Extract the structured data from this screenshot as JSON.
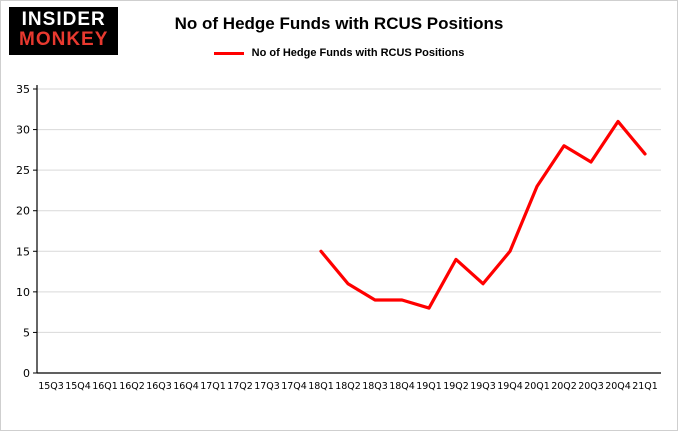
{
  "logo": {
    "line1": "INSIDER",
    "line2": "MONKEY",
    "background_color": "#000000",
    "line1_color": "#ffffff",
    "line2_color": "#e8392f"
  },
  "title": "No of Hedge Funds with RCUS Positions",
  "legend": {
    "label": "No of Hedge Funds with RCUS Positions",
    "color": "#ff0000"
  },
  "chart_data": {
    "type": "line",
    "title": "No of Hedge Funds with RCUS Positions",
    "categories": [
      "15Q3",
      "15Q4",
      "16Q1",
      "16Q2",
      "16Q3",
      "16Q4",
      "17Q1",
      "17Q2",
      "17Q3",
      "17Q4",
      "18Q1",
      "18Q2",
      "18Q3",
      "18Q4",
      "19Q1",
      "19Q2",
      "19Q3",
      "19Q4",
      "20Q1",
      "20Q2",
      "20Q3",
      "20Q4",
      "21Q1"
    ],
    "series": [
      {
        "name": "No of Hedge Funds with RCUS Positions",
        "color": "#ff0000",
        "values": [
          null,
          null,
          null,
          null,
          null,
          null,
          null,
          null,
          null,
          null,
          15,
          11,
          9,
          9,
          8,
          14,
          11,
          15,
          23,
          28,
          26,
          31,
          27
        ]
      }
    ],
    "ylim": [
      0,
      35
    ],
    "yticks": [
      0,
      5,
      10,
      15,
      20,
      25,
      30,
      35
    ],
    "grid": true,
    "gridline_color": "#d9d9d9",
    "axis_color": "#000000",
    "legend_position": "top"
  }
}
